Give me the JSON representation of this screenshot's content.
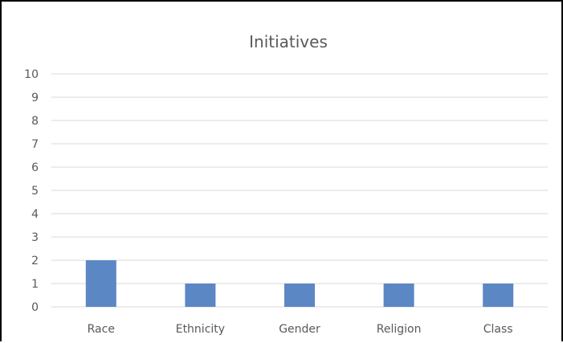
{
  "chart_data": {
    "type": "bar",
    "title": "Initiatives",
    "xlabel": "",
    "ylabel": "",
    "categories": [
      "Race",
      "Ethnicity",
      "Gender",
      "Religion",
      "Class"
    ],
    "values": [
      2,
      1,
      1,
      1,
      1
    ],
    "ylim": [
      0,
      10
    ],
    "yticks": [
      0,
      1,
      2,
      3,
      4,
      5,
      6,
      7,
      8,
      9,
      10
    ],
    "grid": true,
    "legend": "none",
    "colors": {
      "bar": "#5b87c5",
      "grid": "#d9d9d9",
      "text": "#595959"
    }
  }
}
